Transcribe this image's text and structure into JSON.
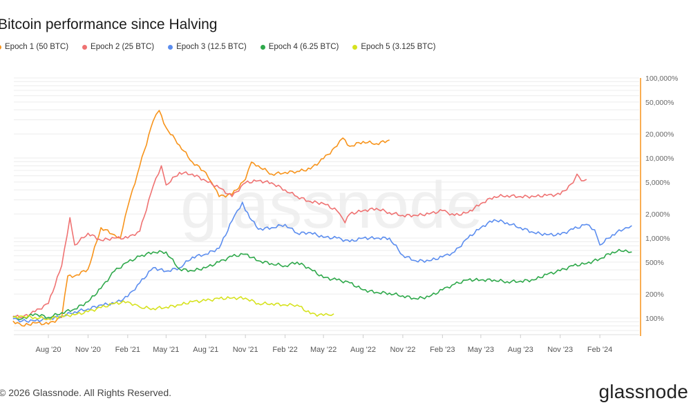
{
  "colors": {
    "epoch1": "#f7931a",
    "epoch2": "#ef7272",
    "epoch3": "#5b8def",
    "epoch4": "#2ea84a",
    "epoch5": "#d6e21e",
    "axis": "#f7931a"
  },
  "footer": {
    "copyright": "© 2026 Glassnode. All Rights Reserved.",
    "logo": "glassnode"
  },
  "chart_data": {
    "type": "line",
    "title": "Bitcoin performance since Halving",
    "watermark": "glassnode",
    "xlabel": "",
    "ylabel": "",
    "y_scale": "log",
    "ylim": [
      70,
      100000
    ],
    "y_ticks": [
      {
        "v": 100,
        "label": "100%"
      },
      {
        "v": 200,
        "label": "200%"
      },
      {
        "v": 500,
        "label": "500%"
      },
      {
        "v": 1000,
        "label": "1,000%"
      },
      {
        "v": 2000,
        "label": "2,000%"
      },
      {
        "v": 5000,
        "label": "5,000%"
      },
      {
        "v": 10000,
        "label": "10,000%"
      },
      {
        "v": 20000,
        "label": "20,000%"
      },
      {
        "v": 50000,
        "label": "50,000%"
      },
      {
        "v": 100000,
        "label": "100,000%"
      }
    ],
    "x_ticks": [
      {
        "d": "2020-08-01",
        "label": "Aug '20"
      },
      {
        "d": "2020-11-01",
        "label": "Nov '20"
      },
      {
        "d": "2021-02-01",
        "label": "Feb '21"
      },
      {
        "d": "2021-05-01",
        "label": "May '21"
      },
      {
        "d": "2021-08-01",
        "label": "Aug '21"
      },
      {
        "d": "2021-11-01",
        "label": "Nov '21"
      },
      {
        "d": "2022-02-01",
        "label": "Feb '22"
      },
      {
        "d": "2022-05-01",
        "label": "May '22"
      },
      {
        "d": "2022-08-01",
        "label": "Aug '22"
      },
      {
        "d": "2022-11-01",
        "label": "Nov '22"
      },
      {
        "d": "2023-02-01",
        "label": "Feb '23"
      },
      {
        "d": "2023-05-01",
        "label": "May '23"
      },
      {
        "d": "2023-08-01",
        "label": "Aug '23"
      },
      {
        "d": "2023-11-01",
        "label": "Nov '23"
      },
      {
        "d": "2024-02-01",
        "label": "Feb '24"
      }
    ],
    "grid": true,
    "legend_position": "top-left",
    "series": [
      {
        "name": "Epoch 1 (50 BTC)",
        "color": "#f7931a",
        "points": [
          [
            "2020-05-11",
            92
          ],
          [
            "2020-06-01",
            80
          ],
          [
            "2020-07-01",
            87
          ],
          [
            "2020-08-01",
            84
          ],
          [
            "2020-09-01",
            102
          ],
          [
            "2020-09-15",
            336
          ],
          [
            "2020-10-01",
            336
          ],
          [
            "2020-11-01",
            409
          ],
          [
            "2020-12-01",
            1350
          ],
          [
            "2021-01-01",
            1100
          ],
          [
            "2021-01-15",
            1000
          ],
          [
            "2021-02-01",
            2440
          ],
          [
            "2021-03-01",
            8000
          ],
          [
            "2021-04-01",
            29000
          ],
          [
            "2021-04-15",
            39300
          ],
          [
            "2021-05-01",
            24000
          ],
          [
            "2021-06-01",
            14500
          ],
          [
            "2021-07-01",
            8900
          ],
          [
            "2021-08-01",
            6600
          ],
          [
            "2021-08-15",
            4900
          ],
          [
            "2021-09-01",
            3300
          ],
          [
            "2021-10-01",
            3500
          ],
          [
            "2021-11-01",
            5400
          ],
          [
            "2021-11-15",
            8900
          ],
          [
            "2021-12-01",
            8000
          ],
          [
            "2022-01-01",
            6300
          ],
          [
            "2022-02-01",
            6600
          ],
          [
            "2022-03-01",
            6800
          ],
          [
            "2022-04-01",
            7300
          ],
          [
            "2022-05-01",
            9800
          ],
          [
            "2022-06-01",
            14000
          ],
          [
            "2022-06-15",
            17800
          ],
          [
            "2022-07-01",
            14000
          ],
          [
            "2022-08-01",
            16100
          ],
          [
            "2022-09-01",
            15100
          ],
          [
            "2022-10-01",
            16800
          ]
        ]
      },
      {
        "name": "Epoch 2 (25 BTC)",
        "color": "#ef7272",
        "points": [
          [
            "2020-05-11",
            106
          ],
          [
            "2020-06-01",
            102
          ],
          [
            "2020-07-01",
            120
          ],
          [
            "2020-08-01",
            152
          ],
          [
            "2020-09-01",
            452
          ],
          [
            "2020-09-20",
            1800
          ],
          [
            "2020-10-01",
            820
          ],
          [
            "2020-11-01",
            1150
          ],
          [
            "2020-12-01",
            940
          ],
          [
            "2021-01-01",
            1000
          ],
          [
            "2021-02-01",
            1000
          ],
          [
            "2021-03-01",
            1220
          ],
          [
            "2021-04-01",
            4450
          ],
          [
            "2021-04-20",
            8000
          ],
          [
            "2021-05-01",
            4600
          ],
          [
            "2021-06-01",
            6600
          ],
          [
            "2021-07-01",
            6300
          ],
          [
            "2021-08-01",
            5200
          ],
          [
            "2021-09-01",
            4250
          ],
          [
            "2021-10-01",
            3300
          ],
          [
            "2021-11-01",
            4900
          ],
          [
            "2021-12-01",
            5200
          ],
          [
            "2022-01-01",
            4900
          ],
          [
            "2022-02-01",
            4000
          ],
          [
            "2022-03-01",
            3300
          ],
          [
            "2022-04-01",
            2850
          ],
          [
            "2022-05-01",
            2700
          ],
          [
            "2022-06-01",
            2200
          ],
          [
            "2022-06-20",
            1550
          ],
          [
            "2022-07-01",
            2000
          ],
          [
            "2022-08-01",
            2200
          ],
          [
            "2022-09-01",
            2350
          ],
          [
            "2022-10-01",
            2080
          ],
          [
            "2022-11-01",
            1920
          ],
          [
            "2022-12-01",
            1920
          ],
          [
            "2023-01-01",
            2000
          ],
          [
            "2023-02-01",
            2200
          ],
          [
            "2023-03-01",
            1920
          ],
          [
            "2023-04-01",
            2080
          ],
          [
            "2023-05-01",
            2700
          ],
          [
            "2023-06-01",
            3300
          ],
          [
            "2023-07-01",
            3400
          ],
          [
            "2023-08-01",
            3300
          ],
          [
            "2023-09-01",
            3300
          ],
          [
            "2023-10-01",
            3400
          ],
          [
            "2023-11-01",
            3500
          ],
          [
            "2023-12-01",
            4900
          ],
          [
            "2023-12-10",
            6300
          ],
          [
            "2023-12-20",
            5200
          ],
          [
            "2024-01-01",
            5400
          ]
        ]
      },
      {
        "name": "Epoch 3 (12.5 BTC)",
        "color": "#5b8def",
        "points": [
          [
            "2020-05-11",
            98
          ],
          [
            "2020-06-01",
            92
          ],
          [
            "2020-07-01",
            92
          ],
          [
            "2020-08-01",
            98
          ],
          [
            "2020-09-01",
            106
          ],
          [
            "2020-10-01",
            120
          ],
          [
            "2020-11-01",
            130
          ],
          [
            "2020-12-01",
            146
          ],
          [
            "2021-01-01",
            152
          ],
          [
            "2021-02-01",
            185
          ],
          [
            "2021-03-01",
            275
          ],
          [
            "2021-04-01",
            425
          ],
          [
            "2021-05-01",
            385
          ],
          [
            "2021-06-01",
            425
          ],
          [
            "2021-07-01",
            580
          ],
          [
            "2021-08-01",
            630
          ],
          [
            "2021-09-01",
            745
          ],
          [
            "2021-10-01",
            1640
          ],
          [
            "2021-10-25",
            2800
          ],
          [
            "2021-11-01",
            2200
          ],
          [
            "2021-12-01",
            1290
          ],
          [
            "2022-01-01",
            1350
          ],
          [
            "2022-02-01",
            1480
          ],
          [
            "2022-03-01",
            1150
          ],
          [
            "2022-04-01",
            1170
          ],
          [
            "2022-05-01",
            1020
          ],
          [
            "2022-06-01",
            1000
          ],
          [
            "2022-07-01",
            900
          ],
          [
            "2022-08-01",
            1000
          ],
          [
            "2022-09-01",
            1000
          ],
          [
            "2022-10-01",
            1000
          ],
          [
            "2022-11-01",
            610
          ],
          [
            "2022-12-01",
            520
          ],
          [
            "2023-01-01",
            520
          ],
          [
            "2023-02-01",
            580
          ],
          [
            "2023-03-01",
            670
          ],
          [
            "2023-04-01",
            1000
          ],
          [
            "2023-05-01",
            1350
          ],
          [
            "2023-06-01",
            1700
          ],
          [
            "2023-07-01",
            1550
          ],
          [
            "2023-08-01",
            1350
          ],
          [
            "2023-09-01",
            1170
          ],
          [
            "2023-10-01",
            1100
          ],
          [
            "2023-11-01",
            1100
          ],
          [
            "2023-12-01",
            1290
          ],
          [
            "2024-01-01",
            1480
          ],
          [
            "2024-01-20",
            1270
          ],
          [
            "2024-02-01",
            820
          ],
          [
            "2024-03-01",
            1100
          ],
          [
            "2024-04-01",
            1350
          ],
          [
            "2024-04-15",
            1430
          ]
        ]
      },
      {
        "name": "Epoch 4 (6.25 BTC)",
        "color": "#2ea84a",
        "points": [
          [
            "2020-05-11",
            102
          ],
          [
            "2020-06-01",
            98
          ],
          [
            "2020-07-01",
            113
          ],
          [
            "2020-08-01",
            102
          ],
          [
            "2020-09-01",
            117
          ],
          [
            "2020-10-01",
            130
          ],
          [
            "2020-11-01",
            160
          ],
          [
            "2020-12-01",
            235
          ],
          [
            "2021-01-01",
            385
          ],
          [
            "2021-02-01",
            500
          ],
          [
            "2021-03-01",
            590
          ],
          [
            "2021-04-01",
            670
          ],
          [
            "2021-05-01",
            670
          ],
          [
            "2021-06-01",
            410
          ],
          [
            "2021-07-01",
            390
          ],
          [
            "2021-08-01",
            425
          ],
          [
            "2021-09-01",
            500
          ],
          [
            "2021-10-01",
            590
          ],
          [
            "2021-11-01",
            630
          ],
          [
            "2021-12-01",
            520
          ],
          [
            "2022-01-01",
            480
          ],
          [
            "2022-02-01",
            450
          ],
          [
            "2022-03-01",
            500
          ],
          [
            "2022-04-01",
            410
          ],
          [
            "2022-05-01",
            320
          ],
          [
            "2022-06-01",
            300
          ],
          [
            "2022-07-01",
            275
          ],
          [
            "2022-08-01",
            225
          ],
          [
            "2022-09-01",
            210
          ],
          [
            "2022-10-01",
            205
          ],
          [
            "2022-11-01",
            190
          ],
          [
            "2022-12-01",
            175
          ],
          [
            "2023-01-01",
            185
          ],
          [
            "2023-02-01",
            225
          ],
          [
            "2023-03-01",
            265
          ],
          [
            "2023-04-01",
            300
          ],
          [
            "2023-05-01",
            300
          ],
          [
            "2023-06-01",
            300
          ],
          [
            "2023-07-01",
            285
          ],
          [
            "2023-08-01",
            290
          ],
          [
            "2023-09-01",
            300
          ],
          [
            "2023-10-01",
            350
          ],
          [
            "2023-11-01",
            390
          ],
          [
            "2023-12-01",
            450
          ],
          [
            "2024-01-01",
            480
          ],
          [
            "2024-02-01",
            550
          ],
          [
            "2024-03-01",
            670
          ],
          [
            "2024-04-01",
            710
          ],
          [
            "2024-04-15",
            670
          ]
        ]
      },
      {
        "name": "Epoch 5 (3.125 BTC)",
        "color": "#d6e21e",
        "points": [
          [
            "2020-05-11",
            102
          ],
          [
            "2020-06-01",
            106
          ],
          [
            "2020-07-01",
            102
          ],
          [
            "2020-08-01",
            98
          ],
          [
            "2020-09-01",
            106
          ],
          [
            "2020-10-01",
            110
          ],
          [
            "2020-11-01",
            120
          ],
          [
            "2020-12-01",
            135
          ],
          [
            "2021-01-01",
            152
          ],
          [
            "2021-02-01",
            160
          ],
          [
            "2021-03-01",
            137
          ],
          [
            "2021-04-01",
            132
          ],
          [
            "2021-05-01",
            137
          ],
          [
            "2021-06-01",
            146
          ],
          [
            "2021-07-01",
            160
          ],
          [
            "2021-08-01",
            165
          ],
          [
            "2021-09-01",
            175
          ],
          [
            "2021-10-01",
            178
          ],
          [
            "2021-11-01",
            178
          ],
          [
            "2021-12-01",
            152
          ],
          [
            "2022-01-01",
            152
          ],
          [
            "2022-02-01",
            146
          ],
          [
            "2022-03-01",
            146
          ],
          [
            "2022-04-01",
            113
          ],
          [
            "2022-05-01",
            108
          ],
          [
            "2022-05-25",
            113
          ]
        ]
      }
    ]
  }
}
